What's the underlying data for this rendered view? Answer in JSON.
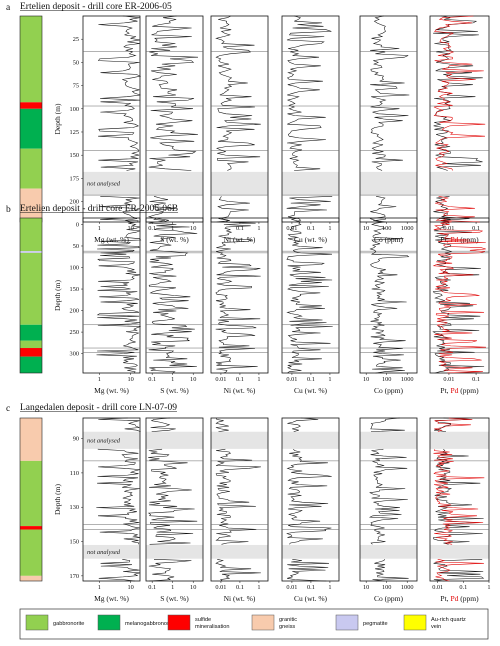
{
  "colors": {
    "gabbronorite": "#92d050",
    "melanogabbronorite": "#00b050",
    "sulfide": "#ff0000",
    "granitic": "#f8cbad",
    "pegmatite": "#c9c9f0",
    "au_vein": "#ffff00",
    "pd_series": "#e00000",
    "not_analysed_band": "#e5e5e5"
  },
  "chart_data": [
    {
      "panel": "a",
      "type": "line",
      "title": "Ertelien deposit - drill core ER-2006-05",
      "ylabel": "Depth (m)",
      "ylim": [
        0,
        222
      ],
      "yticks": [
        "25",
        "50",
        "75",
        "100",
        "125",
        "150",
        "175",
        "200"
      ],
      "lithology": [
        {
          "rock": "gabbronorite",
          "top": 0,
          "bottom": 93
        },
        {
          "rock": "sulfide",
          "top": 93,
          "bottom": 100
        },
        {
          "rock": "melanogabbronorite",
          "top": 100,
          "bottom": 143
        },
        {
          "rock": "gabbronorite",
          "top": 143,
          "bottom": 186
        },
        {
          "rock": "granitic",
          "top": 186,
          "bottom": 222
        }
      ],
      "not_analysed": [
        {
          "top": 168,
          "bottom": 193,
          "label": "not analysed"
        }
      ],
      "hlines": [
        38,
        97,
        145,
        193
      ],
      "columns": [
        {
          "xlabel": "Mg (wt. %)",
          "xticks": [
            "1",
            "10"
          ],
          "scale": "log",
          "xlim": [
            0.3,
            20
          ]
        },
        {
          "xlabel": "S (wt. %)",
          "xticks": [
            "0.1",
            "1",
            "10"
          ],
          "scale": "log",
          "xlim": [
            0.05,
            30
          ]
        },
        {
          "xlabel": "Ni (wt. %)",
          "xticks": [
            "0.1",
            "1"
          ],
          "scale": "log",
          "xlim": [
            0.003,
            3
          ]
        },
        {
          "xlabel": "Cu (wt. %)",
          "xticks": [
            "0.01",
            "0.1",
            "1"
          ],
          "scale": "log",
          "xlim": [
            0.003,
            3
          ]
        },
        {
          "xlabel": "Co (ppm)",
          "xticks": [
            "10",
            "100",
            "1000"
          ],
          "scale": "log",
          "xlim": [
            5,
            3000
          ]
        },
        {
          "xlabel": "Pt, Pd (ppm)",
          "xticks": [
            "0.01",
            "0.1"
          ],
          "scale": "log",
          "xlim": [
            0.002,
            0.3
          ]
        }
      ]
    },
    {
      "panel": "b",
      "type": "line",
      "title": "Ertelien deposit - drill core ER-2006-06B",
      "ylabel": "Depth (m)",
      "ylim": [
        -15,
        345
      ],
      "yticks": [
        "0",
        "50",
        "100",
        "150",
        "200",
        "250",
        "300"
      ],
      "lithology": [
        {
          "rock": "gabbronorite",
          "top": -15,
          "bottom": 62
        },
        {
          "rock": "pegmatite",
          "top": 62,
          "bottom": 66
        },
        {
          "rock": "gabbronorite",
          "top": 66,
          "bottom": 233
        },
        {
          "rock": "melanogabbronorite",
          "top": 233,
          "bottom": 270
        },
        {
          "rock": "gabbronorite",
          "top": 270,
          "bottom": 287
        },
        {
          "rock": "sulfide",
          "top": 287,
          "bottom": 307
        },
        {
          "rock": "melanogabbronorite",
          "top": 307,
          "bottom": 345
        }
      ],
      "not_analysed": [],
      "hlines": [
        62,
        66,
        233,
        287,
        297
      ],
      "columns": [
        {
          "xlabel": "Mg (wt. %)",
          "xticks": [
            "1",
            "10"
          ],
          "scale": "log",
          "xlim": [
            0.3,
            20
          ]
        },
        {
          "xlabel": "S (wt. %)",
          "xticks": [
            "0.1",
            "1",
            "10"
          ],
          "scale": "log",
          "xlim": [
            0.05,
            30
          ]
        },
        {
          "xlabel": "Ni (wt. %)",
          "xticks": [
            "0.01",
            "0.1",
            "1"
          ],
          "scale": "log",
          "xlim": [
            0.003,
            3
          ]
        },
        {
          "xlabel": "Cu (wt. %)",
          "xticks": [
            "0.01",
            "0.1",
            "1"
          ],
          "scale": "log",
          "xlim": [
            0.003,
            3
          ]
        },
        {
          "xlabel": "Co (ppm)",
          "xticks": [
            "10",
            "100",
            "1000"
          ],
          "scale": "log",
          "xlim": [
            5,
            3000
          ]
        },
        {
          "xlabel": "Pt, Pd (ppm)",
          "xticks": [
            "0.01",
            "0.1"
          ],
          "scale": "log",
          "xlim": [
            0.002,
            0.3
          ]
        }
      ]
    },
    {
      "panel": "c",
      "type": "line",
      "title": "Langedalen deposit - drill core LN-07-09",
      "ylabel": "Depth (m)",
      "ylim": [
        78,
        173
      ],
      "yticks": [
        "90",
        "110",
        "130",
        "150",
        "170"
      ],
      "lithology": [
        {
          "rock": "granitic",
          "top": 78,
          "bottom": 103
        },
        {
          "rock": "gabbronorite",
          "top": 103,
          "bottom": 141
        },
        {
          "rock": "sulfide",
          "top": 141,
          "bottom": 143
        },
        {
          "rock": "gabbronorite",
          "top": 143,
          "bottom": 170
        },
        {
          "rock": "granitic",
          "top": 170,
          "bottom": 173
        }
      ],
      "not_analysed": [
        {
          "top": 86,
          "bottom": 96,
          "label": "not analysed"
        },
        {
          "top": 152,
          "bottom": 160,
          "label": "not analysed"
        }
      ],
      "hlines": [
        103,
        140,
        143
      ],
      "columns": [
        {
          "xlabel": "Mg (wt. %)",
          "xticks": [
            "1",
            "10"
          ],
          "scale": "log",
          "xlim": [
            0.3,
            20
          ]
        },
        {
          "xlabel": "S (wt. %)",
          "xticks": [
            "0.1",
            "1",
            "10"
          ],
          "scale": "log",
          "xlim": [
            0.05,
            30
          ]
        },
        {
          "xlabel": "Ni (wt. %)",
          "xticks": [
            "0.01",
            "0.1",
            "1"
          ],
          "scale": "log",
          "xlim": [
            0.003,
            3
          ]
        },
        {
          "xlabel": "Cu (wt. %)",
          "xticks": [
            "0.01",
            "0.1",
            "1"
          ],
          "scale": "log",
          "xlim": [
            0.003,
            3
          ]
        },
        {
          "xlabel": "Co (ppm)",
          "xticks": [
            "10",
            "100",
            "1000"
          ],
          "scale": "log",
          "xlim": [
            5,
            3000
          ]
        },
        {
          "xlabel": "Pt, Pd (ppm)",
          "xticks": [
            "0.01",
            "0.1",
            "1"
          ],
          "scale": "log",
          "xlim": [
            0.005,
            1
          ]
        }
      ]
    }
  ],
  "legend": [
    {
      "key": "gabbronorite",
      "label": "gabbronorite"
    },
    {
      "key": "melanogabbronorite",
      "label": "melanogabbronorite"
    },
    {
      "key": "sulfide",
      "label": "sulfide mineralisation"
    },
    {
      "key": "granitic",
      "label": "granitic gneiss"
    },
    {
      "key": "pegmatite",
      "label": "pegmatite"
    },
    {
      "key": "au_vein",
      "label": "Au-rich quartz vein"
    }
  ]
}
